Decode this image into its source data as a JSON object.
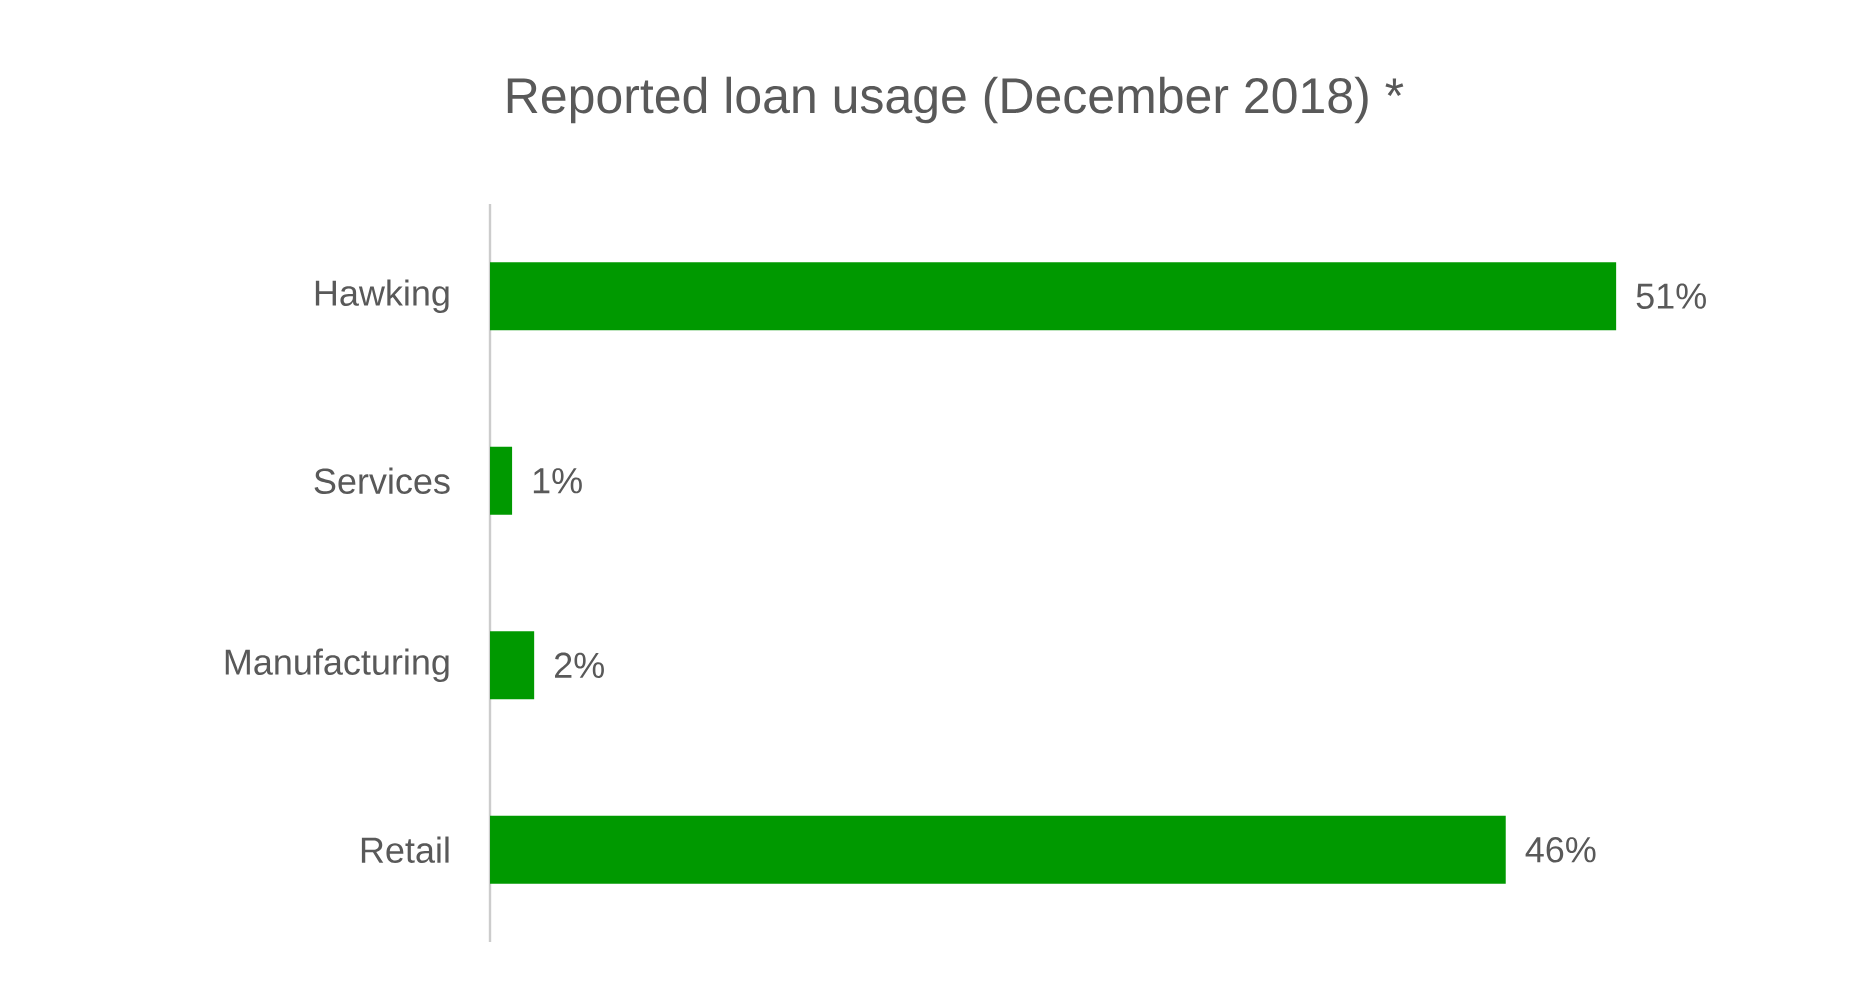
{
  "chart_data": {
    "type": "bar",
    "orientation": "horizontal",
    "title": "Reported loan usage (December 2018) *",
    "categories": [
      "Hawking",
      "Services",
      "Manufacturing",
      "Retail"
    ],
    "values": [
      51,
      1,
      2,
      46
    ],
    "value_labels": [
      "51%",
      "1%",
      "2%",
      "46%"
    ],
    "color": "#009900"
  }
}
